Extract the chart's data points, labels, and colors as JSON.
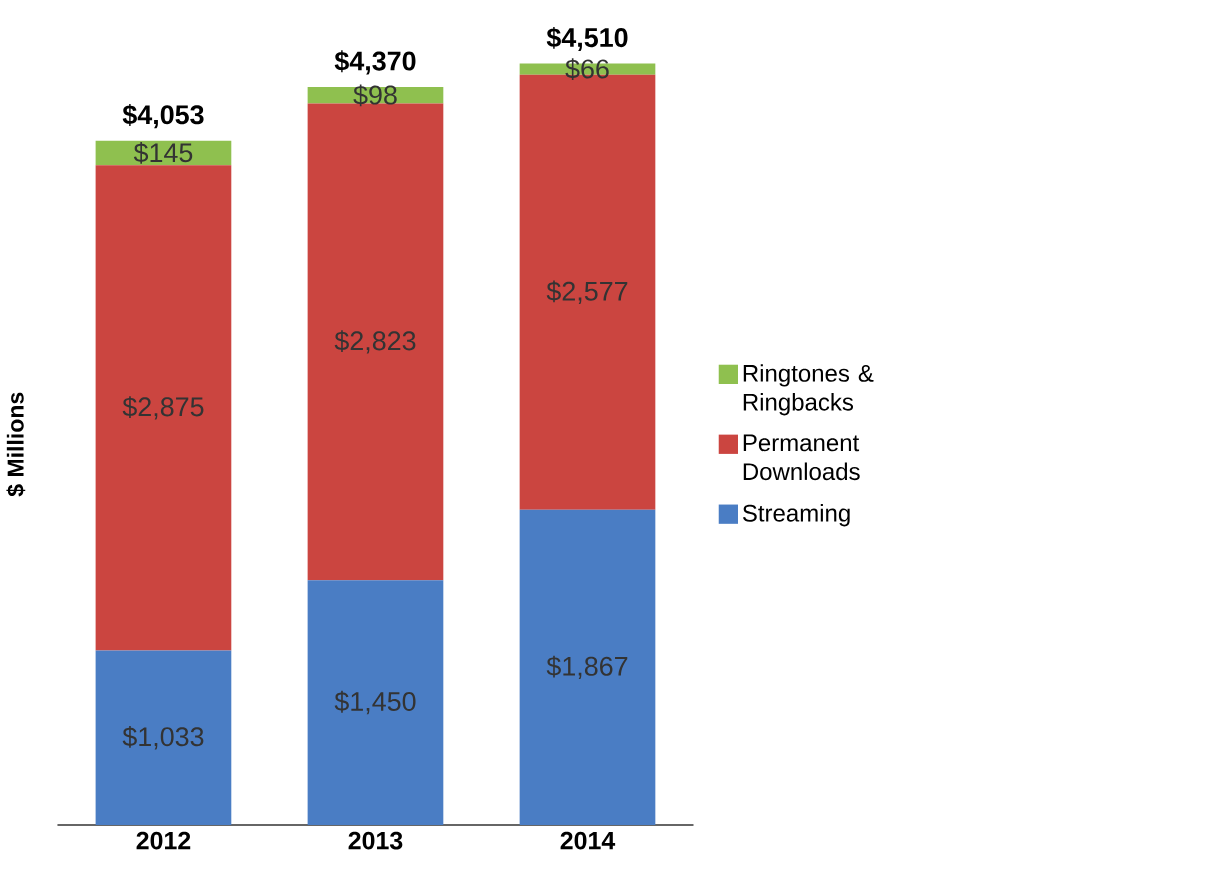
{
  "chart_data": {
    "type": "bar",
    "stacked": true,
    "ylabel": "$ Millions",
    "categories": [
      "2012",
      "2013",
      "2014"
    ],
    "series": [
      {
        "name": "Streaming",
        "color": "#4a7dc4",
        "values": [
          1033,
          1450,
          1867
        ],
        "value_labels": [
          "$1,033",
          "$1,450",
          "$1,867"
        ]
      },
      {
        "name": "Permanent Downloads",
        "color": "#cb4540",
        "values": [
          2875,
          2823,
          2577
        ],
        "value_labels": [
          "$2,875",
          "$2,823",
          "$2,577"
        ]
      },
      {
        "name": "Ringtones & Ringbacks",
        "color": "#8fc04f",
        "values": [
          145,
          98,
          66
        ],
        "value_labels": [
          "$145",
          "$98",
          "$66"
        ]
      }
    ],
    "totals": [
      "$4,053",
      "$4,370",
      "$4,510"
    ],
    "legend": "right"
  }
}
